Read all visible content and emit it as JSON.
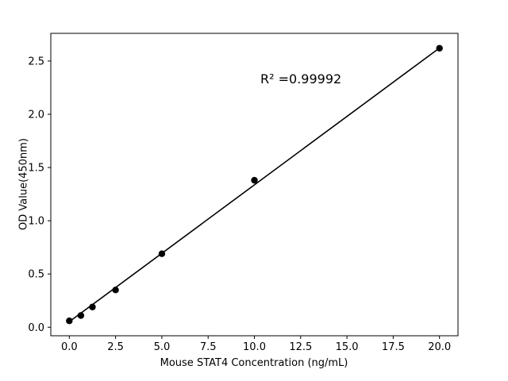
{
  "chart_data": {
    "type": "scatter",
    "title": "",
    "xlabel": "Mouse STAT4 Concentration (ng/mL)",
    "ylabel": "OD Value(450nm)",
    "annotation": "R² =0.99992",
    "x": [
      0,
      0.625,
      1.25,
      2.5,
      5,
      10,
      20
    ],
    "y": [
      0.06,
      0.11,
      0.19,
      0.35,
      0.69,
      1.38,
      2.62
    ],
    "fit_line": {
      "x": [
        0,
        20
      ],
      "slope": 0.1285,
      "intercept": 0.052
    },
    "xticks": [
      0.0,
      2.5,
      5.0,
      7.5,
      10.0,
      12.5,
      15.0,
      17.5,
      20.0
    ],
    "xtick_labels": [
      "0.0",
      "2.5",
      "5.0",
      "7.5",
      "10.0",
      "12.5",
      "15.0",
      "17.5",
      "20.0"
    ],
    "yticks": [
      0.0,
      0.5,
      1.0,
      1.5,
      2.0,
      2.5
    ],
    "ytick_labels": [
      "0.0",
      "0.5",
      "1.0",
      "1.5",
      "2.0",
      "2.5"
    ],
    "xlim": [
      -1,
      21
    ],
    "ylim": [
      -0.08,
      2.76
    ],
    "grid": false,
    "legend": null,
    "line_color": "#000000",
    "marker_color": "#000000",
    "background_color": "#ffffff"
  }
}
